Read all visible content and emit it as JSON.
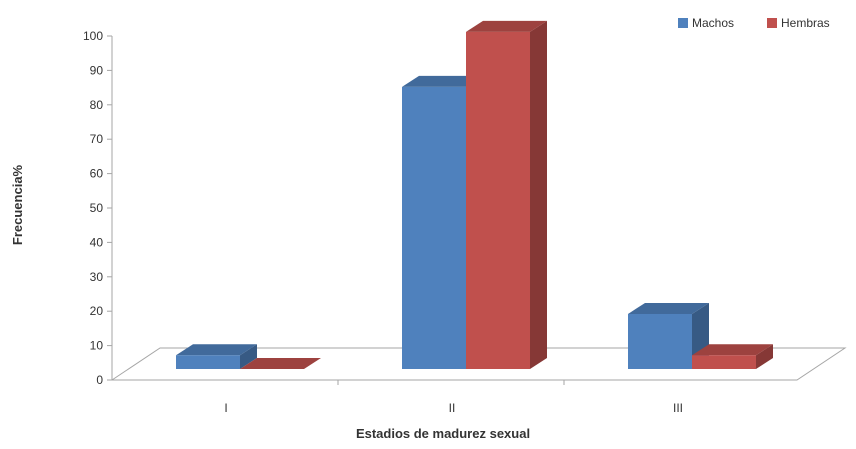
{
  "chart_data": {
    "type": "bar",
    "style": "3d-clustered-column",
    "categories": [
      "I",
      "II",
      "III"
    ],
    "series": [
      {
        "name": "Machos",
        "values": [
          4,
          82,
          16
        ],
        "color": "#4f81bd"
      },
      {
        "name": "Hembras",
        "values": [
          0,
          98,
          4
        ],
        "color": "#c0504d"
      }
    ],
    "xlabel": "Estadios de madurez sexual",
    "ylabel": "Frecuencia%",
    "ylim": [
      0,
      100
    ],
    "yticks": [
      0,
      10,
      20,
      30,
      40,
      50,
      60,
      70,
      80,
      90,
      100
    ],
    "grid": false,
    "legend_position": "top-right"
  }
}
